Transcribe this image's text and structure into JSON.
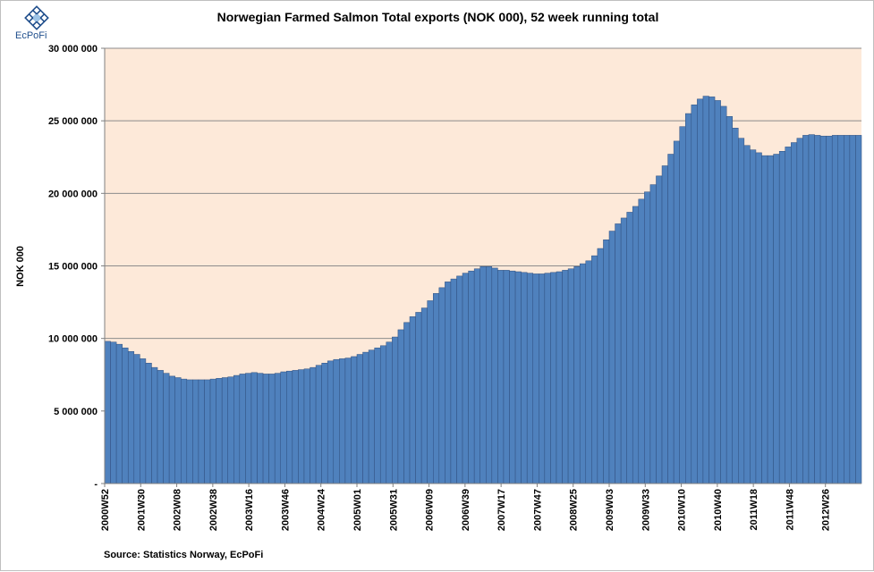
{
  "brand": {
    "name": "EcPoFi",
    "icon": "ecpofi-logo-icon",
    "color": "#1f4e8c"
  },
  "source_text": "Source: Statistics Norway, EcPoFi",
  "chart_data": {
    "type": "area",
    "title": "Norwegian Farmed Salmon Total exports (NOK 000), 52 week running total",
    "xlabel": "",
    "ylabel": "NOK 000",
    "ylim": [
      0,
      30000000
    ],
    "yticks": [
      0,
      5000000,
      10000000,
      15000000,
      20000000,
      25000000,
      30000000
    ],
    "ytick_labels": [
      "-",
      "5 000 000",
      "10 000 000",
      "15 000 000",
      "20 000 000",
      "25 000 000",
      "30 000 000"
    ],
    "grid": true,
    "plot_background": "#fde9d9",
    "series_color": "#4f81bd",
    "xtick_labels": [
      "2000W52",
      "2001W30",
      "2002W08",
      "2002W38",
      "2003W16",
      "2003W46",
      "2004W24",
      "2005W01",
      "2005W31",
      "2006W09",
      "2006W39",
      "2007W17",
      "2007W47",
      "2008W25",
      "2009W03",
      "2009W33",
      "2010W10",
      "2010W40",
      "2011W18",
      "2011W48",
      "2012W26"
    ],
    "series": [
      {
        "name": "Total exports (NOK 000), 52 week running total",
        "x": [
          "2000W52",
          "2001W04",
          "2001W08",
          "2001W12",
          "2001W16",
          "2001W20",
          "2001W25",
          "2001W30",
          "2001W34",
          "2001W38",
          "2001W42",
          "2001W47",
          "2001W51",
          "2002W04",
          "2002W08",
          "2002W12",
          "2002W16",
          "2002W20",
          "2002W25",
          "2002W30",
          "2002W34",
          "2002W38",
          "2002W42",
          "2002W47",
          "2003W01",
          "2003W06",
          "2003W11",
          "2003W16",
          "2003W21",
          "2003W26",
          "2003W31",
          "2003W36",
          "2003W41",
          "2003W46",
          "2003W51",
          "2004W04",
          "2004W09",
          "2004W14",
          "2004W19",
          "2004W24",
          "2004W29",
          "2004W34",
          "2004W39",
          "2004W44",
          "2004W49",
          "2005W01",
          "2005W05",
          "2005W09",
          "2005W13",
          "2005W17",
          "2005W21",
          "2005W26",
          "2005W31",
          "2005W36",
          "2005W41",
          "2005W46",
          "2005W51",
          "2006W04",
          "2006W09",
          "2006W14",
          "2006W19",
          "2006W24",
          "2006W29",
          "2006W34",
          "2006W39",
          "2006W44",
          "2006W49",
          "2007W02",
          "2007W07",
          "2007W12",
          "2007W17",
          "2007W22",
          "2007W27",
          "2007W32",
          "2007W37",
          "2007W42",
          "2007W47",
          "2007W52",
          "2008W05",
          "2008W10",
          "2008W15",
          "2008W20",
          "2008W25",
          "2008W30",
          "2008W35",
          "2008W40",
          "2008W45",
          "2008W50",
          "2009W03",
          "2009W08",
          "2009W13",
          "2009W18",
          "2009W23",
          "2009W28",
          "2009W33",
          "2009W38",
          "2009W43",
          "2009W48",
          "2010W01",
          "2010W05",
          "2010W10",
          "2010W15",
          "2010W20",
          "2010W25",
          "2010W30",
          "2010W35",
          "2010W40",
          "2010W45",
          "2010W50",
          "2011W03",
          "2011W08",
          "2011W13",
          "2011W18",
          "2011W23",
          "2011W28",
          "2011W33",
          "2011W38",
          "2011W43",
          "2011W48",
          "2012W01",
          "2012W06",
          "2012W11",
          "2012W16",
          "2012W21",
          "2012W26",
          "2012W31",
          "2012W36",
          "2012W41",
          "2012W46"
        ],
        "values": [
          9800000,
          9750000,
          9600000,
          9350000,
          9100000,
          8900000,
          8600000,
          8300000,
          8000000,
          7800000,
          7600000,
          7400000,
          7300000,
          7200000,
          7150000,
          7150000,
          7150000,
          7150000,
          7200000,
          7250000,
          7300000,
          7350000,
          7450000,
          7550000,
          7600000,
          7650000,
          7600000,
          7550000,
          7550000,
          7600000,
          7700000,
          7750000,
          7800000,
          7850000,
          7900000,
          8000000,
          8150000,
          8300000,
          8450000,
          8550000,
          8600000,
          8650000,
          8750000,
          8900000,
          9050000,
          9200000,
          9350000,
          9500000,
          9750000,
          10100000,
          10600000,
          11100000,
          11500000,
          11800000,
          12100000,
          12600000,
          13100000,
          13500000,
          13900000,
          14100000,
          14300000,
          14500000,
          14650000,
          14800000,
          14950000,
          14950000,
          14850000,
          14700000,
          14700000,
          14650000,
          14600000,
          14550000,
          14500000,
          14450000,
          14450000,
          14500000,
          14550000,
          14600000,
          14700000,
          14800000,
          14950000,
          15150000,
          15350000,
          15700000,
          16200000,
          16800000,
          17400000,
          17900000,
          18300000,
          18700000,
          19100000,
          19600000,
          20100000,
          20600000,
          21200000,
          21900000,
          22700000,
          23600000,
          24600000,
          25500000,
          26100000,
          26500000,
          26700000,
          26650000,
          26400000,
          26000000,
          25300000,
          24500000,
          23800000,
          23300000,
          23000000,
          22800000,
          22600000,
          22600000,
          22700000,
          22900000,
          23200000,
          23500000,
          23800000,
          24000000,
          24050000,
          24000000,
          23950000,
          23950000,
          24000000,
          24000000,
          24000000,
          24000000,
          24000000
        ]
      }
    ]
  }
}
